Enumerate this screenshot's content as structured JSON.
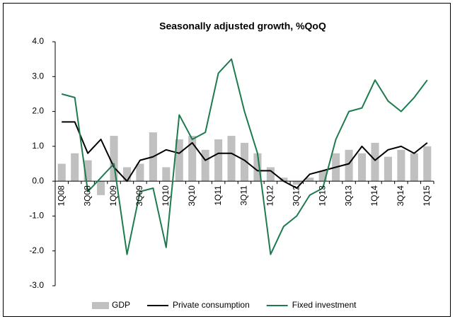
{
  "chart_data": {
    "type": "bar_line",
    "title": "Seasonally adjusted growth, %QoQ",
    "categories": [
      "1Q08",
      null,
      "3Q08",
      null,
      "1Q09",
      null,
      "3Q09",
      null,
      "1Q10",
      null,
      "3Q10",
      null,
      "1Q11",
      null,
      "3Q11",
      null,
      "1Q12",
      null,
      "3Q12",
      null,
      "1Q13",
      null,
      "3Q13",
      null,
      "1Q14",
      null,
      "3Q14",
      null,
      "1Q15"
    ],
    "series": [
      {
        "name": "GDP",
        "kind": "bar",
        "color": "#c0c0c0",
        "values": [
          0.5,
          0.8,
          0.6,
          -0.4,
          1.3,
          0.4,
          0.5,
          1.4,
          0.4,
          1.2,
          1.3,
          0.9,
          1.2,
          1.3,
          1.1,
          0.8,
          0.4,
          0.1,
          -0.1,
          0.1,
          0.3,
          0.8,
          0.9,
          0.8,
          1.1,
          0.7,
          0.9,
          0.8,
          1.0
        ]
      },
      {
        "name": "Private consumption",
        "kind": "line",
        "color": "#000000",
        "values": [
          1.7,
          1.7,
          0.8,
          1.2,
          0.4,
          0.0,
          0.6,
          0.7,
          0.9,
          0.8,
          1.1,
          0.6,
          0.8,
          0.8,
          0.6,
          0.3,
          0.3,
          0.0,
          -0.2,
          0.2,
          0.3,
          0.4,
          0.5,
          1.0,
          0.6,
          0.9,
          1.0,
          0.8,
          1.1
        ]
      },
      {
        "name": "Fixed investment",
        "kind": "line",
        "color": "#1e7b4e",
        "values": [
          2.5,
          2.4,
          -0.3,
          0.1,
          0.5,
          -2.1,
          -0.3,
          -0.2,
          -1.9,
          1.9,
          1.2,
          1.4,
          3.1,
          3.5,
          2.0,
          0.8,
          -2.1,
          -1.3,
          -1.0,
          -0.4,
          -0.2,
          1.2,
          2.0,
          2.1,
          2.9,
          2.3,
          2.0,
          2.4,
          2.9
        ]
      }
    ],
    "ylim": [
      -3,
      4
    ],
    "yticks": [
      {
        "value": -3,
        "label": "-3.0"
      },
      {
        "value": -2,
        "label": "-2.0"
      },
      {
        "value": -1,
        "label": "-1.0"
      },
      {
        "value": 0,
        "label": "0.0"
      },
      {
        "value": 1,
        "label": "1.0"
      },
      {
        "value": 2,
        "label": "2.0"
      },
      {
        "value": 3,
        "label": "3.0"
      },
      {
        "value": 4,
        "label": "4.0"
      }
    ],
    "grid": false,
    "legend": "bottom"
  }
}
